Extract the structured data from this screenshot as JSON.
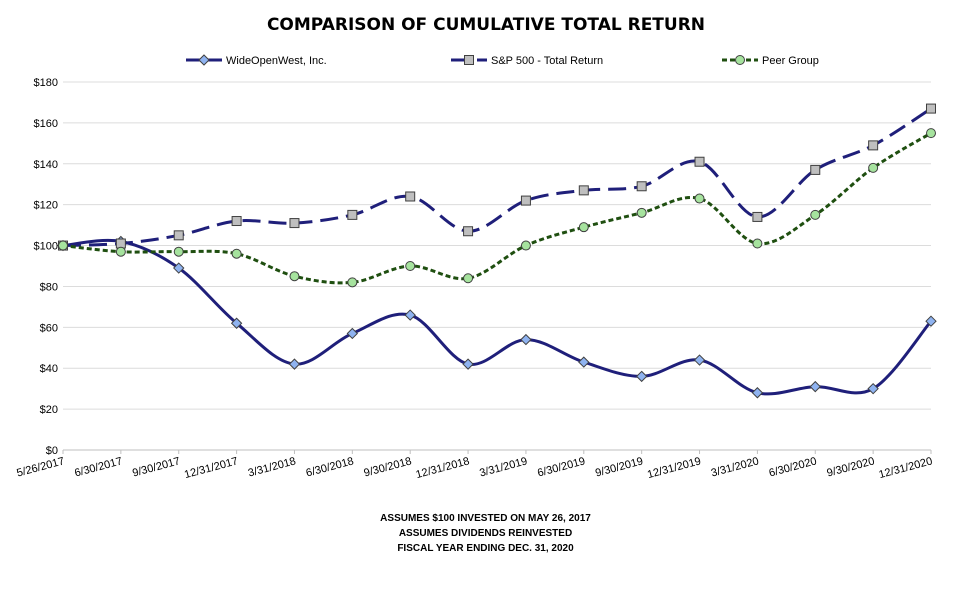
{
  "chart_data": {
    "type": "line",
    "title": "COMPARISON OF CUMULATIVE TOTAL RETURN",
    "categories": [
      "5/26/2017",
      "6/30/2017",
      "9/30/2017",
      "12/31/2017",
      "3/31/2018",
      "6/30/2018",
      "9/30/2018",
      "12/31/2018",
      "3/31/2019",
      "6/30/2019",
      "9/30/2019",
      "12/31/2019",
      "3/31/2020",
      "6/30/2020",
      "9/30/2020",
      "12/31/2020"
    ],
    "series": [
      {
        "name": "WideOpenWest, Inc.",
        "color": "#1f1f7a",
        "marker": "diamond",
        "marker_fill": "#8fb3f0",
        "dash": "solid",
        "values": [
          100,
          102,
          89,
          62,
          42,
          57,
          66,
          42,
          54,
          43,
          36,
          44,
          28,
          31,
          30,
          63
        ]
      },
      {
        "name": "S&P 500 - Total Return",
        "color": "#1f1f7a",
        "marker": "square",
        "marker_fill": "#bfbfbf",
        "dash": "long",
        "values": [
          100,
          101,
          105,
          112,
          111,
          115,
          124,
          107,
          122,
          127,
          129,
          141,
          114,
          137,
          149,
          167
        ]
      },
      {
        "name": "Peer Group",
        "color": "#1f4f10",
        "marker": "circle",
        "marker_fill": "#a6e39e",
        "dash": "short",
        "values": [
          100,
          97,
          97,
          96,
          85,
          82,
          90,
          84,
          100,
          109,
          116,
          123,
          101,
          115,
          138,
          155
        ]
      }
    ],
    "ylim": [
      0,
      180
    ],
    "yticks": [
      "$0",
      "$20",
      "$40",
      "$60",
      "$80",
      "$100",
      "$120",
      "$140",
      "$160",
      "$180"
    ],
    "ytick_values": [
      0,
      20,
      40,
      60,
      80,
      100,
      120,
      140,
      160,
      180
    ],
    "grid": true,
    "legend_position": "top"
  },
  "footer": {
    "line1": "ASSUMES $100 INVESTED ON MAY 26, 2017",
    "line2": "ASSUMES DIVIDENDS REINVESTED",
    "line3": "FISCAL YEAR ENDING DEC. 31, 2020"
  }
}
